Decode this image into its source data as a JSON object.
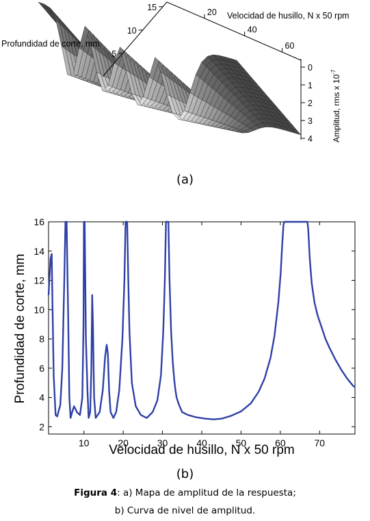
{
  "panel_a_label": "(a)",
  "panel_b_label": "(b)",
  "caption": {
    "bold": "Figura 4",
    "line1_rest": ": a) Mapa de amplitud de la respuesta;",
    "line2": "b) Curva de nivel de amplitud."
  },
  "chart_data": [
    {
      "type": "surface",
      "x_label": "Velocidad de husillo, N x 50 rpm",
      "x_ticks": [
        "20",
        "40",
        "60"
      ],
      "y_label": "Profundidad de corte, mm",
      "y_ticks": [
        "5",
        "10",
        "15"
      ],
      "z_label": "Amplitud, rms x 10",
      "z_label_exponent": "-7",
      "z_ticks": [
        "0",
        "1",
        "2",
        "3",
        "4"
      ],
      "zlim": [
        0,
        4
      ],
      "colormap": "gray"
    },
    {
      "type": "line",
      "xlabel": "Velocidad de husillo, N x 50 rpm",
      "ylabel": "Profundidad de corte, mm",
      "xlim": [
        1,
        79
      ],
      "ylim": [
        1.5,
        16
      ],
      "xticks": [
        10,
        20,
        30,
        40,
        50,
        60,
        70
      ],
      "yticks": [
        2,
        4,
        6,
        8,
        10,
        12,
        14,
        16
      ],
      "line_color": "#2e3fa6",
      "series": [
        {
          "x": [
            1,
            1.5,
            1.8,
            2.0,
            2.3,
            2.8,
            3.2,
            4.0,
            4.5,
            5.0,
            5.3,
            5.6,
            6.0,
            6.3,
            6.6,
            7.0,
            7.5,
            8.2,
            9.0,
            9.6,
            9.9,
            10.0,
            10.2,
            10.5,
            10.9,
            11.2,
            11.6,
            11.9,
            12.1,
            12.3,
            12.6,
            13.0,
            14.0,
            14.8,
            15.4,
            15.8,
            16.1,
            16.4,
            16.8,
            17.5,
            18.2,
            19.0,
            19.8,
            20.3,
            20.6,
            20.8,
            21.0,
            21.3,
            21.6,
            22.2,
            23.2,
            24.5,
            26.0,
            27.5,
            28.7,
            29.6,
            30.2,
            30.6,
            30.9,
            31.1,
            31.3,
            31.5,
            31.8,
            32.2,
            32.6,
            33.0,
            33.3,
            33.6,
            34.2,
            35.0,
            36.5,
            38.5,
            41.0,
            43.0,
            45.0,
            47.5,
            50.0,
            52.5,
            54.5,
            56.0,
            57.5,
            58.5,
            59.5,
            60.1,
            60.5,
            60.8,
            61.0,
            66.9,
            67.1,
            67.5,
            68.0,
            68.7,
            69.5,
            70.5,
            71.5,
            72.5,
            74.0,
            75.5,
            77.0,
            78.5,
            79.0
          ],
          "y": [
            11.0,
            13.5,
            13.8,
            10.5,
            5.5,
            2.8,
            2.7,
            3.5,
            6.0,
            12.0,
            16.0,
            16.0,
            9.5,
            4.0,
            2.6,
            3.0,
            3.4,
            3.0,
            2.8,
            4.0,
            9.0,
            16.0,
            16.0,
            8.0,
            4.5,
            2.6,
            3.0,
            6.0,
            11.0,
            9.0,
            4.0,
            2.6,
            3.0,
            4.5,
            6.8,
            7.6,
            7.0,
            4.5,
            3.0,
            2.6,
            3.0,
            4.5,
            8.0,
            12.0,
            16.0,
            16.0,
            16.0,
            12.0,
            8.5,
            5.0,
            3.4,
            2.8,
            2.6,
            3.0,
            3.8,
            5.5,
            8.5,
            12.0,
            16.0,
            16.0,
            16.0,
            16.0,
            12.0,
            8.5,
            6.5,
            5.2,
            4.5,
            4.0,
            3.5,
            3.0,
            2.8,
            2.65,
            2.55,
            2.5,
            2.55,
            2.75,
            3.05,
            3.6,
            4.4,
            5.3,
            6.7,
            8.2,
            10.5,
            12.5,
            14.5,
            15.8,
            16.0,
            16.0,
            15.5,
            13.5,
            11.8,
            10.5,
            9.6,
            8.8,
            8.0,
            7.4,
            6.6,
            5.9,
            5.3,
            4.8,
            4.7
          ]
        }
      ]
    }
  ]
}
